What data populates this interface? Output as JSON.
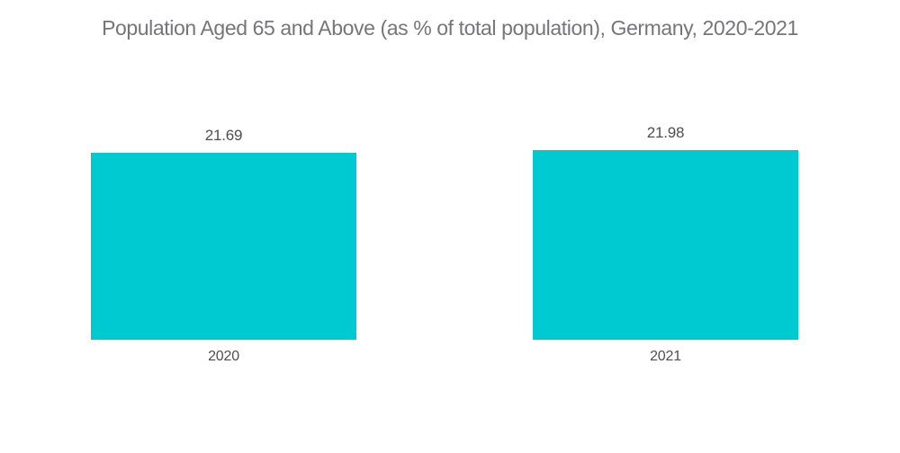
{
  "chart_data": {
    "type": "bar",
    "title": "Population Aged 65 and Above (as % of total population), Germany, 2020-2021",
    "categories": [
      "2020",
      "2021"
    ],
    "values": [
      21.69,
      21.98
    ],
    "xlabel": "",
    "ylabel": "",
    "ylim": [
      0,
      22.5
    ],
    "grid": false,
    "legend": "none",
    "colors": {
      "bar": "#00CAD1",
      "title": "#75767A",
      "label": "#4E4F53",
      "background": "#FFFFFF"
    }
  }
}
